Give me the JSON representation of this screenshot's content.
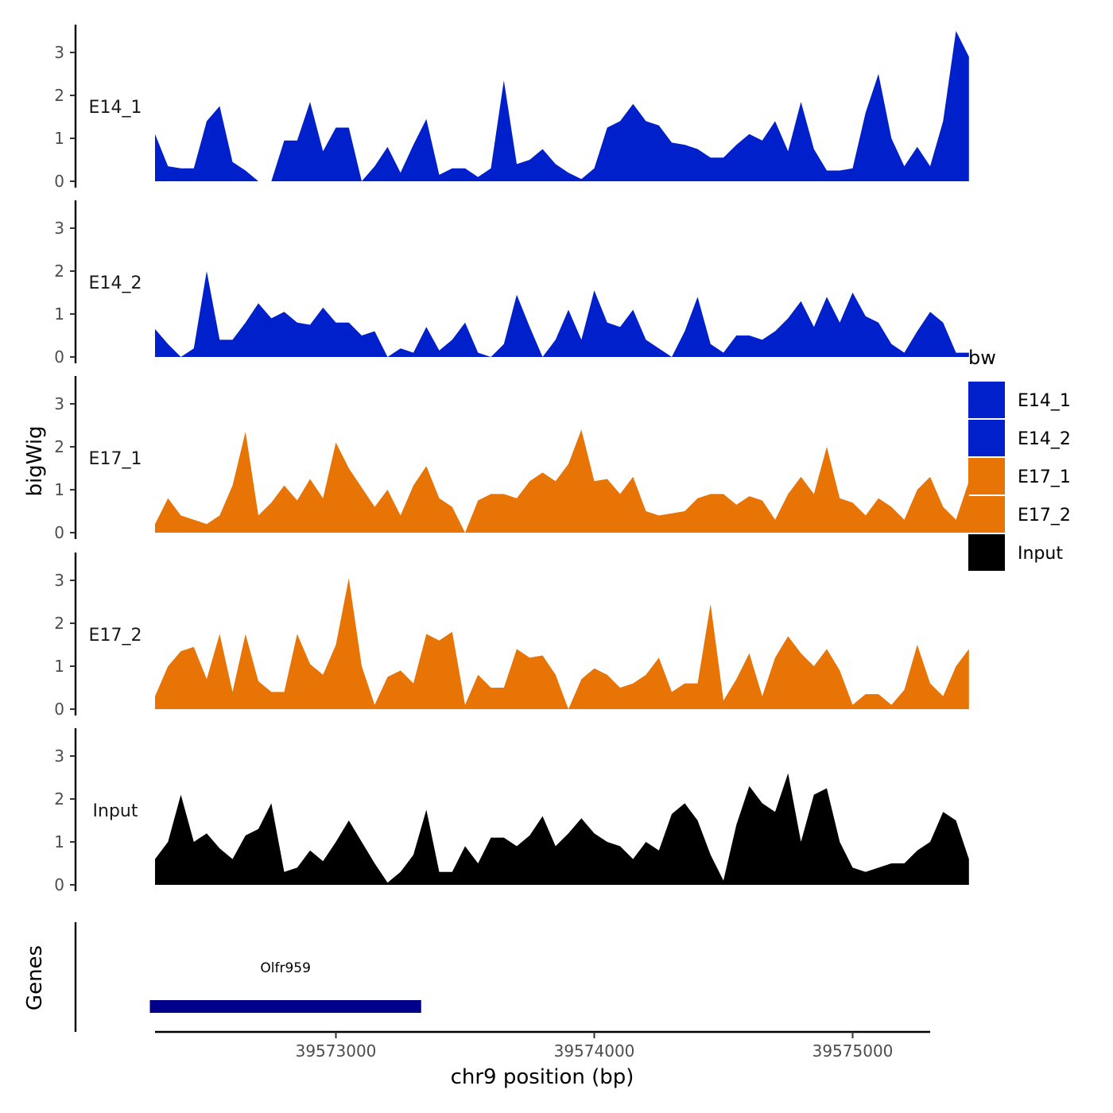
{
  "chart_data": {
    "type": "area",
    "title": "",
    "xlabel": "chr9 position (bp)",
    "ylabel": "bigWig",
    "genes_label": "Genes",
    "xlim": [
      39572300,
      39575300
    ],
    "ylim": [
      0,
      3.6
    ],
    "x_ticks": [
      39573000,
      39574000,
      39575000
    ],
    "x_tick_labels": [
      "39573000",
      "39574000",
      "39575000"
    ],
    "y_ticks": [
      0,
      1,
      2,
      3
    ],
    "y_tick_labels": [
      "0",
      "1",
      "2",
      "3"
    ],
    "legend": {
      "title": "bw",
      "position": "right",
      "entries": [
        {
          "label": "E14_1",
          "color": "#0020CC"
        },
        {
          "label": "E14_2",
          "color": "#0020CC"
        },
        {
          "label": "E17_1",
          "color": "#E87405"
        },
        {
          "label": "E17_2",
          "color": "#E87405"
        },
        {
          "label": "Input",
          "color": "#000000"
        }
      ]
    },
    "x_start": 39572300,
    "x_step": 50,
    "series": [
      {
        "name": "E14_1",
        "color": "#0020CC",
        "values": [
          1.1,
          0.35,
          0.3,
          0.3,
          1.4,
          1.75,
          0.45,
          0.25,
          0,
          0,
          0.95,
          0.95,
          1.85,
          0.7,
          1.25,
          1.25,
          0,
          0.35,
          0.8,
          0.2,
          0.85,
          1.45,
          0.15,
          0.3,
          0.3,
          0.1,
          0.3,
          2.35,
          0.4,
          0.5,
          0.75,
          0.4,
          0.2,
          0.05,
          0.3,
          1.25,
          1.4,
          1.8,
          1.4,
          1.3,
          0.9,
          0.85,
          0.75,
          0.55,
          0.55,
          0.85,
          1.1,
          0.95,
          1.4,
          0.7,
          1.85,
          0.75,
          0.25,
          0.25,
          0.3,
          1.6,
          2.5,
          1.0,
          0.35,
          0.8,
          0.35,
          1.4,
          3.5,
          2.9
        ]
      },
      {
        "name": "E14_2",
        "color": "#0020CC",
        "values": [
          0.65,
          0.3,
          0.0,
          0.2,
          2.0,
          0.4,
          0.4,
          0.8,
          1.25,
          0.9,
          1.05,
          0.8,
          0.75,
          1.15,
          0.8,
          0.8,
          0.5,
          0.6,
          0.0,
          0.2,
          0.1,
          0.7,
          0.15,
          0.4,
          0.8,
          0.1,
          0.0,
          0.3,
          1.45,
          0.7,
          0.0,
          0.4,
          1.1,
          0.4,
          1.55,
          0.8,
          0.7,
          1.1,
          0.4,
          0.2,
          0.0,
          0.6,
          1.4,
          0.3,
          0.1,
          0.5,
          0.5,
          0.4,
          0.6,
          0.9,
          1.3,
          0.7,
          1.4,
          0.8,
          1.5,
          0.95,
          0.8,
          0.3,
          0.1,
          0.6,
          1.05,
          0.8,
          0.1,
          0.1
        ]
      },
      {
        "name": "E17_1",
        "color": "#E87405",
        "values": [
          0.2,
          0.8,
          0.4,
          0.3,
          0.2,
          0.4,
          1.1,
          2.35,
          0.4,
          0.7,
          1.1,
          0.75,
          1.25,
          0.8,
          2.1,
          1.5,
          1.05,
          0.6,
          1.0,
          0.4,
          1.1,
          1.55,
          0.8,
          0.6,
          0.0,
          0.75,
          0.9,
          0.9,
          0.8,
          1.2,
          1.4,
          1.2,
          1.6,
          2.4,
          1.2,
          1.25,
          0.9,
          1.3,
          0.5,
          0.4,
          0.45,
          0.5,
          0.8,
          0.9,
          0.9,
          0.65,
          0.85,
          0.75,
          0.3,
          0.9,
          1.3,
          0.9,
          2.0,
          0.8,
          0.7,
          0.4,
          0.8,
          0.6,
          0.3,
          1.0,
          1.3,
          0.6,
          0.3,
          1.2
        ]
      },
      {
        "name": "E17_2",
        "color": "#E87405",
        "values": [
          0.3,
          1.0,
          1.35,
          1.45,
          0.7,
          1.75,
          0.4,
          1.75,
          0.65,
          0.4,
          0.4,
          1.75,
          1.05,
          0.8,
          1.5,
          3.05,
          1.0,
          0.1,
          0.75,
          0.9,
          0.6,
          1.75,
          1.6,
          1.8,
          0.1,
          0.8,
          0.5,
          0.5,
          1.4,
          1.2,
          1.25,
          0.8,
          0.0,
          0.7,
          0.95,
          0.8,
          0.5,
          0.6,
          0.8,
          1.2,
          0.4,
          0.6,
          0.6,
          2.45,
          0.2,
          0.7,
          1.3,
          0.3,
          1.2,
          1.7,
          1.3,
          1.0,
          1.4,
          0.9,
          0.1,
          0.35,
          0.35,
          0.1,
          0.45,
          1.5,
          0.6,
          0.3,
          1.0,
          1.4
        ]
      },
      {
        "name": "Input",
        "color": "#000000",
        "values": [
          0.6,
          1.0,
          2.1,
          1.0,
          1.2,
          0.85,
          0.6,
          1.15,
          1.3,
          1.9,
          0.3,
          0.4,
          0.8,
          0.55,
          1.0,
          1.5,
          1.0,
          0.5,
          0.05,
          0.3,
          0.7,
          1.75,
          0.3,
          0.3,
          0.9,
          0.5,
          1.1,
          1.1,
          0.9,
          1.15,
          1.6,
          0.9,
          1.2,
          1.55,
          1.2,
          1.0,
          0.9,
          0.6,
          1.0,
          0.8,
          1.65,
          1.9,
          1.5,
          0.7,
          0.1,
          1.4,
          2.3,
          1.9,
          1.7,
          2.6,
          1.0,
          2.1,
          2.25,
          1.0,
          0.4,
          0.3,
          0.4,
          0.5,
          0.5,
          0.8,
          1.0,
          1.7,
          1.5,
          0.6
        ]
      }
    ],
    "genes": [
      {
        "name": "Olfr959",
        "start": 39572280,
        "end": 39573330
      }
    ]
  }
}
